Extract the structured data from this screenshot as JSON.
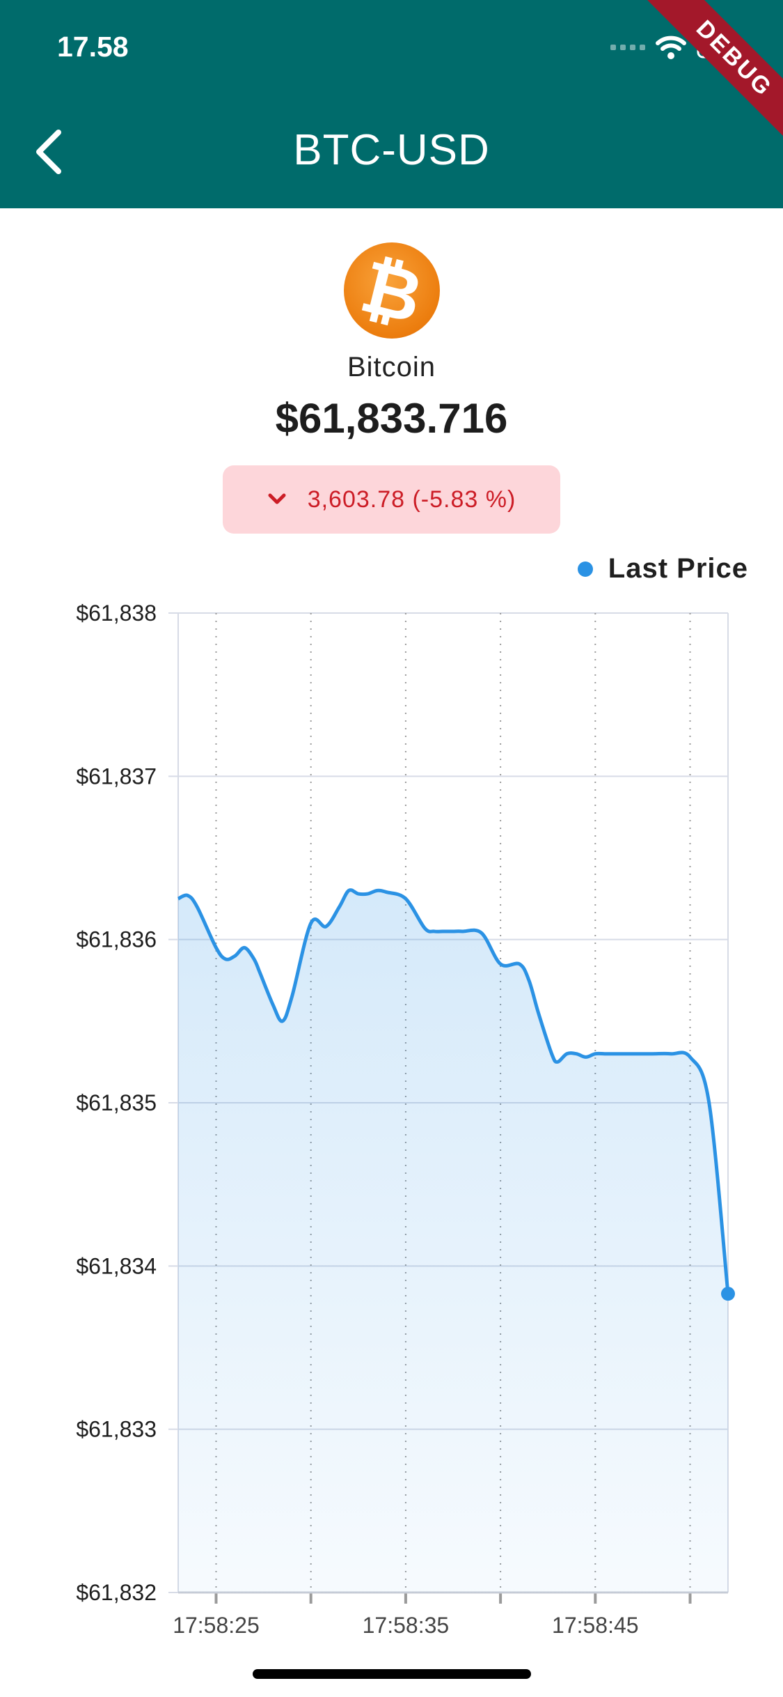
{
  "status_bar": {
    "time": "17.58"
  },
  "app_bar": {
    "title": "BTC-USD",
    "debug_label": "DEBUG"
  },
  "coin": {
    "name": "Bitcoin",
    "logo_icon": "bitcoin-icon",
    "price": "$61,833.716",
    "change": {
      "text": "3,603.78 (-5.83 %)",
      "direction": "down",
      "color": "#cc1d26"
    }
  },
  "colors": {
    "app_bar": "#006b6b",
    "series": "#2b92e4",
    "badge_bg": "#fdd6da"
  },
  "chart_data": {
    "type": "area",
    "legend": {
      "position": "top-right",
      "entries": [
        "Last Price"
      ]
    },
    "y_tick_labels": [
      "$61,838",
      "$61,837",
      "$61,836",
      "$61,835",
      "$61,834",
      "$61,833",
      "$61,832"
    ],
    "x_tick_labels": [
      "17:58:25",
      "17:58:35",
      "17:58:45"
    ],
    "ylim": [
      61832,
      61838
    ],
    "xlim": [
      17,
      46
    ],
    "y_tick_values": [
      61838,
      61837,
      61836,
      61835,
      61834,
      61833,
      61832
    ],
    "x_tick_positions": [
      19,
      24,
      29,
      34,
      39,
      44
    ],
    "x_labeled_positions": [
      19,
      29,
      39
    ],
    "grid": {
      "horizontal": "solid",
      "vertical": "dotted"
    },
    "series": [
      {
        "name": "Last Price",
        "x": [
          17,
          17.5,
          18,
          19,
          19.5,
          20,
          20.5,
          21,
          21.3,
          22,
          22.5,
          23,
          24,
          24.8,
          25.5,
          26,
          26.5,
          27,
          27.5,
          28,
          29,
          30,
          30.5,
          31,
          31.5,
          32,
          33,
          34,
          35,
          35.5,
          36,
          36.7,
          37,
          37.5,
          38,
          38.5,
          39,
          39.5,
          40,
          41,
          42,
          43,
          44,
          45,
          46
        ],
        "y": [
          61836.25,
          61836.27,
          61836.2,
          61835.95,
          61835.88,
          61835.9,
          61835.95,
          61835.88,
          61835.8,
          61835.6,
          61835.5,
          61835.65,
          61836.1,
          61836.08,
          61836.2,
          61836.3,
          61836.28,
          61836.28,
          61836.3,
          61836.29,
          61836.25,
          61836.07,
          61836.05,
          61836.05,
          61836.05,
          61836.05,
          61836.04,
          61835.85,
          61835.85,
          61835.75,
          61835.55,
          61835.3,
          61835.25,
          61835.3,
          61835.3,
          61835.28,
          61835.3,
          61835.3,
          61835.3,
          61835.3,
          61835.3,
          61835.3,
          61835.28,
          61835.0,
          61833.83
        ]
      }
    ]
  }
}
